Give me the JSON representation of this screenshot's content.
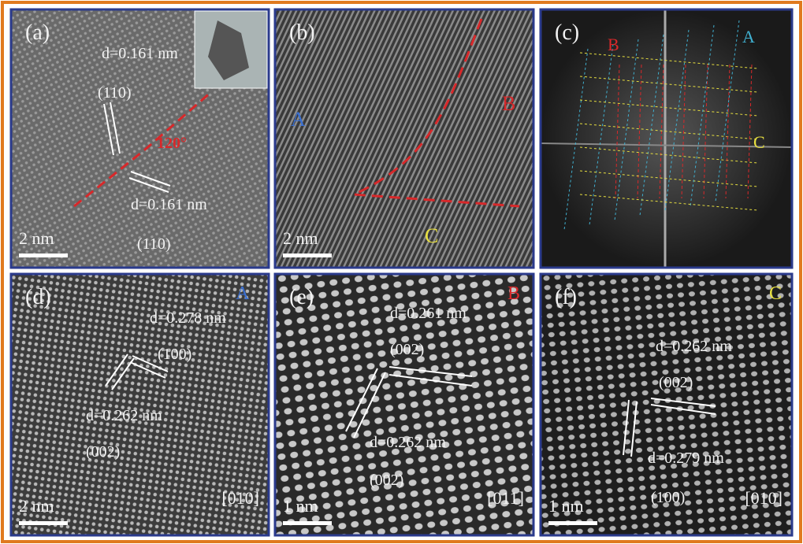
{
  "panels": [
    {
      "label": "(a)",
      "texts": [
        "d=0.161 nm",
        "(110)",
        "120°",
        "d=0.161 nm",
        "(110)"
      ],
      "scale_bar": "2 nm"
    },
    {
      "label": "(b)",
      "texts": [
        "A",
        "B",
        "C"
      ],
      "scale_bar": "2 nm"
    },
    {
      "label": "(c)",
      "texts": [
        "B",
        "A",
        "C"
      ]
    },
    {
      "label": "(d)",
      "texts": [
        "A",
        "d=0.278 nm",
        "(100)",
        "d=0.262 nm",
        "(002)"
      ],
      "scale_bar": "2 nm",
      "zone_axis": "[010]"
    },
    {
      "label": "(e)",
      "texts": [
        "B",
        "d=0.261 nm",
        "(002)",
        "d=0.262 nm",
        "(002)"
      ],
      "scale_bar": "1 nm",
      "zone_axis": "[011]"
    },
    {
      "label": "(f)",
      "texts": [
        "C",
        "d=0.262 nm",
        "(002)",
        "d=0.279 nm",
        "(100)"
      ],
      "scale_bar": "1 nm",
      "zone_axis": "[010]"
    }
  ]
}
